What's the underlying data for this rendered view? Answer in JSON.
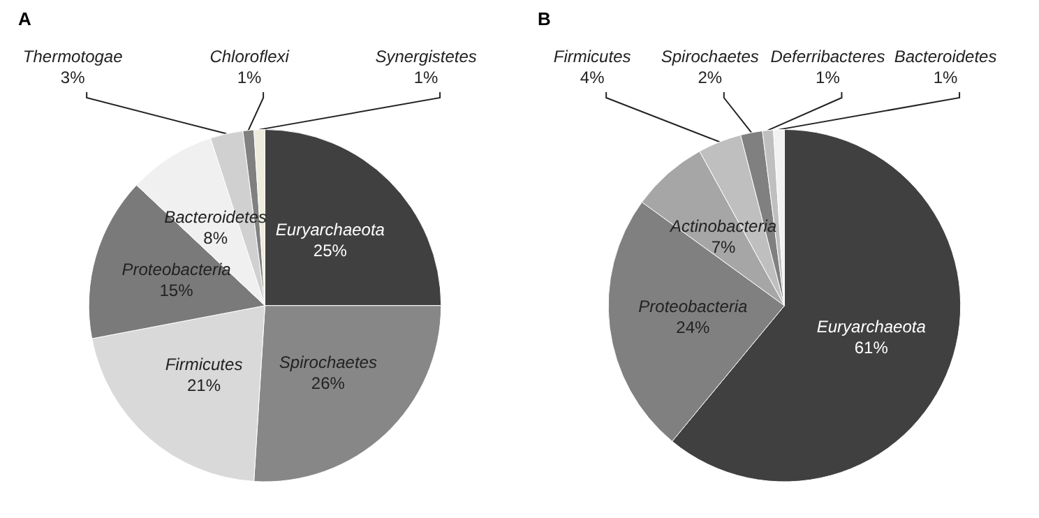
{
  "chart_data": [
    {
      "type": "pie",
      "title": "A",
      "categories": [
        "Euryarchaeota",
        "Spirochaetes",
        "Firmicutes",
        "Proteobacteria",
        "Bacteroidetes",
        "Thermotogae",
        "Chloroflexi",
        "Synergistetes"
      ],
      "values": [
        25,
        26,
        21,
        15,
        8,
        3,
        1,
        1
      ],
      "value_labels": [
        "25%",
        "26%",
        "21%",
        "15%",
        "8%",
        "3%",
        "1%",
        "1%"
      ],
      "colors": [
        "#404040",
        "#878787",
        "#d9d9d9",
        "#7a7a7a",
        "#f0f0f0",
        "#d0d0d0",
        "#808080",
        "#eeecdc"
      ]
    },
    {
      "type": "pie",
      "title": "B",
      "categories": [
        "Euryarchaeota",
        "Proteobacteria",
        "Actinobacteria",
        "Firmicutes",
        "Spirochaetes",
        "Deferribacteres",
        "Bacteroidetes"
      ],
      "values": [
        61,
        24,
        7,
        4,
        2,
        1,
        1
      ],
      "value_labels": [
        "61%",
        "24%",
        "7%",
        "4%",
        "2%",
        "1%",
        "1%"
      ],
      "colors": [
        "#404040",
        "#808080",
        "#a6a6a6",
        "#bfbfbf",
        "#808080",
        "#bfbfbf",
        "#f2f2f2"
      ]
    }
  ]
}
